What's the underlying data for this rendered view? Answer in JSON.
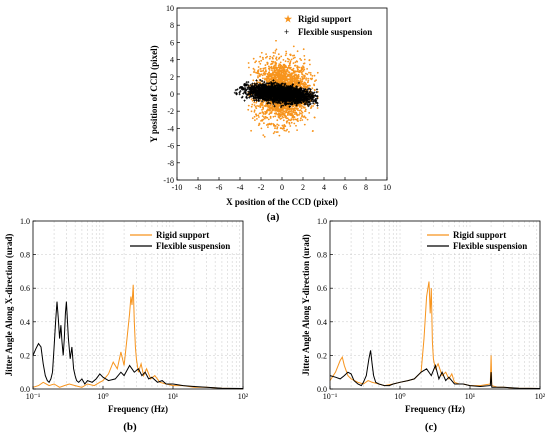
{
  "colors": {
    "rigid": "#f7941d",
    "flexible": "#000000",
    "grid": "#c8c8c8"
  },
  "chart_data": [
    {
      "type": "scatter",
      "panel": "a",
      "caption": "(a)",
      "xlabel": "X position of the CCD (pixel)",
      "ylabel": "Y position of CCD (pixel)",
      "xlim": [
        -10,
        10
      ],
      "ylim": [
        -10,
        10
      ],
      "xticks": [
        "-10",
        "-8",
        "-6",
        "-4",
        "-2",
        "0",
        "2",
        "4",
        "6",
        "8",
        "10"
      ],
      "yticks": [
        "-10",
        "-8",
        "-6",
        "-4",
        "-2",
        "0",
        "2",
        "4",
        "6",
        "8",
        "10"
      ],
      "legend_position": "top-right",
      "series": [
        {
          "name": "Rigid support",
          "marker": "star",
          "color": "#f7941d",
          "distribution": {
            "x_range": [
              -3.3,
              3.5
            ],
            "y_range": [
              -5.0,
              6.5
            ],
            "x_center": 0.0,
            "y_center": 0.3,
            "x_sd": 1.3,
            "y_sd": 1.8
          }
        },
        {
          "name": "Flexible suspension",
          "marker": "plus",
          "color": "#000000",
          "distribution": {
            "x_range": [
              -4.5,
              3.4
            ],
            "y_range": [
              -1.8,
              1.8
            ],
            "x_center": -0.2,
            "y_center": 0.0,
            "x_sd": 1.5,
            "y_sd": 0.45,
            "tilt": -0.12
          }
        }
      ]
    },
    {
      "type": "line",
      "panel": "b",
      "caption": "(b)",
      "xlabel": "Frequency (Hz)",
      "ylabel": "Jitter Angle Along X-direction (urad)",
      "xscale": "log",
      "xlim": [
        0.1,
        100
      ],
      "ylim": [
        0,
        1.0
      ],
      "xticks": [
        "10⁻¹",
        "10⁰",
        "10¹",
        "10²"
      ],
      "yticks": [
        "0.0",
        "0.2",
        "0.4",
        "0.6",
        "0.8",
        "1.0"
      ],
      "legend_position": "top-right",
      "series": [
        {
          "name": "Rigid support",
          "color": "#f7941d",
          "x": [
            0.1,
            0.12,
            0.14,
            0.17,
            0.2,
            0.24,
            0.28,
            0.33,
            0.4,
            0.5,
            0.6,
            0.75,
            0.9,
            1.0,
            1.2,
            1.4,
            1.6,
            1.8,
            2.0,
            2.2,
            2.4,
            2.5,
            2.6,
            2.7,
            2.8,
            2.9,
            3.0,
            3.2,
            3.5,
            3.8,
            4.2,
            4.8,
            5.5,
            6.5,
            8,
            10,
            14,
            20,
            30,
            50,
            100
          ],
          "y": [
            0.01,
            0.02,
            0.04,
            0.02,
            0.03,
            0.01,
            0.02,
            0.03,
            0.02,
            0.01,
            0.03,
            0.02,
            0.04,
            0.05,
            0.09,
            0.16,
            0.12,
            0.22,
            0.14,
            0.3,
            0.45,
            0.55,
            0.5,
            0.62,
            0.4,
            0.25,
            0.18,
            0.1,
            0.15,
            0.08,
            0.12,
            0.06,
            0.08,
            0.04,
            0.03,
            0.02,
            0.02,
            0.01,
            0.01,
            0.005,
            0.002
          ]
        },
        {
          "name": "Flexible suspension",
          "color": "#000000",
          "x": [
            0.1,
            0.11,
            0.12,
            0.13,
            0.14,
            0.15,
            0.16,
            0.17,
            0.18,
            0.19,
            0.2,
            0.21,
            0.22,
            0.23,
            0.24,
            0.25,
            0.26,
            0.27,
            0.28,
            0.29,
            0.3,
            0.32,
            0.34,
            0.36,
            0.38,
            0.4,
            0.42,
            0.45,
            0.5,
            0.55,
            0.6,
            0.7,
            0.8,
            0.9,
            1.0,
            1.2,
            1.5,
            1.8,
            2.0,
            2.4,
            2.8,
            3.2,
            3.6,
            4.0,
            4.5,
            5,
            6,
            7,
            8,
            10,
            14,
            20,
            30,
            50,
            100
          ],
          "y": [
            0.2,
            0.24,
            0.27,
            0.25,
            0.15,
            0.08,
            0.05,
            0.04,
            0.06,
            0.1,
            0.25,
            0.4,
            0.52,
            0.42,
            0.3,
            0.38,
            0.28,
            0.2,
            0.3,
            0.45,
            0.52,
            0.3,
            0.18,
            0.25,
            0.12,
            0.08,
            0.05,
            0.04,
            0.06,
            0.03,
            0.05,
            0.04,
            0.06,
            0.09,
            0.07,
            0.05,
            0.06,
            0.1,
            0.08,
            0.14,
            0.1,
            0.12,
            0.08,
            0.1,
            0.06,
            0.07,
            0.04,
            0.05,
            0.03,
            0.03,
            0.02,
            0.015,
            0.01,
            0.005,
            0.003
          ]
        }
      ]
    },
    {
      "type": "line",
      "panel": "c",
      "caption": "(c)",
      "xlabel": "Frequency (Hz)",
      "ylabel": "Jitter Angle Along Y-direction (urad)",
      "xscale": "log",
      "xlim": [
        0.1,
        100
      ],
      "ylim": [
        0,
        1.0
      ],
      "xticks": [
        "10⁻¹",
        "10⁰",
        "10¹",
        "10²"
      ],
      "yticks": [
        "0.0",
        "0.2",
        "0.4",
        "0.6",
        "0.8",
        "1.0"
      ],
      "legend_position": "top-right",
      "series": [
        {
          "name": "Rigid support",
          "color": "#f7941d",
          "x": [
            0.1,
            0.12,
            0.14,
            0.15,
            0.16,
            0.18,
            0.2,
            0.25,
            0.3,
            0.35,
            0.4,
            0.5,
            0.6,
            0.8,
            1.0,
            1.3,
            1.6,
            2.0,
            2.2,
            2.4,
            2.5,
            2.6,
            2.7,
            2.8,
            2.9,
            3.0,
            3.2,
            3.5,
            4.0,
            4.5,
            5.0,
            5.5,
            6,
            7,
            8,
            10,
            14,
            19.5,
            20,
            20.5,
            25,
            30,
            50,
            100
          ],
          "y": [
            0.05,
            0.1,
            0.17,
            0.19,
            0.14,
            0.08,
            0.06,
            0.04,
            0.03,
            0.05,
            0.04,
            0.03,
            0.02,
            0.03,
            0.04,
            0.05,
            0.06,
            0.1,
            0.3,
            0.55,
            0.6,
            0.64,
            0.45,
            0.6,
            0.28,
            0.18,
            0.12,
            0.15,
            0.08,
            0.1,
            0.06,
            0.09,
            0.04,
            0.03,
            0.03,
            0.02,
            0.02,
            0.03,
            0.2,
            0.02,
            0.01,
            0.01,
            0.005,
            0.003
          ]
        },
        {
          "name": "Flexible suspension",
          "color": "#000000",
          "x": [
            0.1,
            0.12,
            0.14,
            0.16,
            0.18,
            0.2,
            0.22,
            0.25,
            0.28,
            0.3,
            0.33,
            0.36,
            0.38,
            0.4,
            0.42,
            0.45,
            0.5,
            0.6,
            0.7,
            0.8,
            1.0,
            1.3,
            1.6,
            2.0,
            2.4,
            2.8,
            3.2,
            3.6,
            4.0,
            4.5,
            5,
            6,
            8,
            10,
            14,
            19.5,
            20,
            20.5,
            30,
            50,
            100
          ],
          "y": [
            0.08,
            0.07,
            0.06,
            0.08,
            0.1,
            0.09,
            0.05,
            0.03,
            0.02,
            0.04,
            0.08,
            0.18,
            0.23,
            0.15,
            0.08,
            0.04,
            0.03,
            0.02,
            0.02,
            0.03,
            0.04,
            0.05,
            0.06,
            0.1,
            0.12,
            0.08,
            0.14,
            0.06,
            0.1,
            0.05,
            0.07,
            0.03,
            0.03,
            0.02,
            0.015,
            0.02,
            0.1,
            0.01,
            0.01,
            0.005,
            0.003
          ]
        }
      ]
    }
  ]
}
